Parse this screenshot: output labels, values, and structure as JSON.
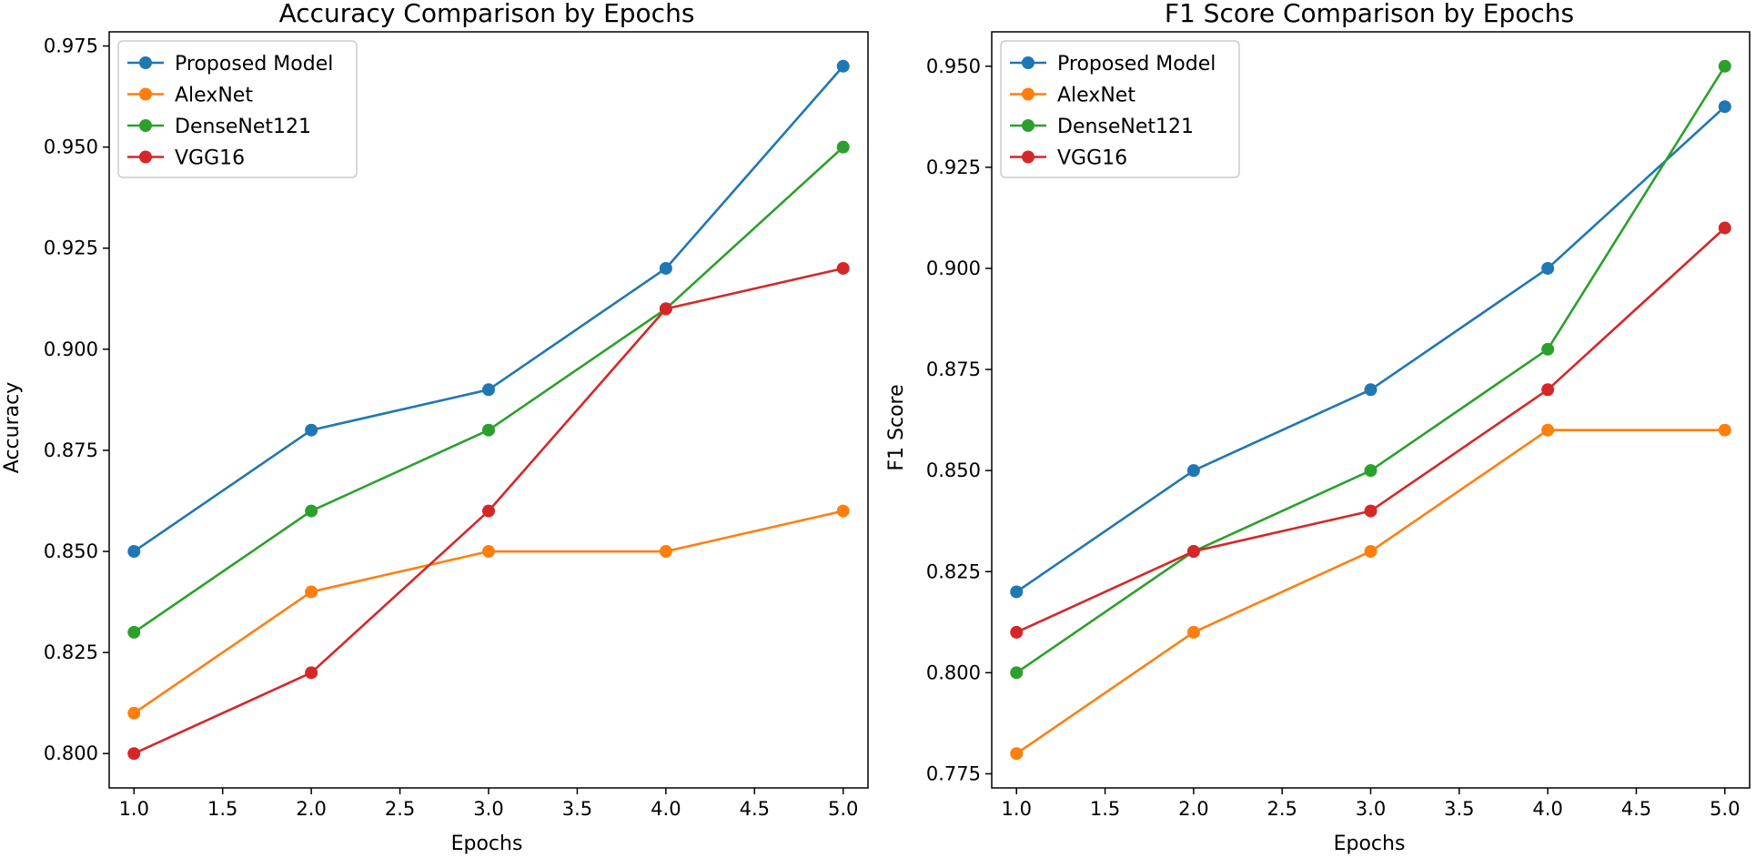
{
  "chart_data": [
    {
      "type": "line",
      "title": "Accuracy Comparison by Epochs",
      "xlabel": "Epochs",
      "ylabel": "Accuracy",
      "x": [
        1.0,
        2.0,
        3.0,
        4.0,
        5.0
      ],
      "xlim": [
        0.86,
        5.14
      ],
      "ylim": [
        0.7915,
        0.9785
      ],
      "xticks": [
        1.0,
        1.5,
        2.0,
        2.5,
        3.0,
        3.5,
        4.0,
        4.5,
        5.0
      ],
      "xtick_labels": [
        "1.0",
        "1.5",
        "2.0",
        "2.5",
        "3.0",
        "3.5",
        "4.0",
        "4.5",
        "5.0"
      ],
      "yticks": [
        0.8,
        0.825,
        0.85,
        0.875,
        0.9,
        0.925,
        0.95,
        0.975
      ],
      "ytick_labels": [
        "0.800",
        "0.825",
        "0.850",
        "0.875",
        "0.900",
        "0.925",
        "0.950",
        "0.975"
      ],
      "grid": false,
      "legend_position": "top-left",
      "series": [
        {
          "name": "Proposed Model",
          "color": "#1f77b4",
          "values": [
            0.85,
            0.88,
            0.89,
            0.92,
            0.97
          ]
        },
        {
          "name": "AlexNet",
          "color": "#ff7f0e",
          "values": [
            0.81,
            0.84,
            0.85,
            0.85,
            0.86
          ]
        },
        {
          "name": "DenseNet121",
          "color": "#2ca02c",
          "values": [
            0.83,
            0.86,
            0.88,
            0.91,
            0.95
          ]
        },
        {
          "name": "VGG16",
          "color": "#d62728",
          "values": [
            0.8,
            0.82,
            0.86,
            0.91,
            0.92
          ]
        }
      ]
    },
    {
      "type": "line",
      "title": "F1 Score Comparison by Epochs",
      "xlabel": "Epochs",
      "ylabel": "F1 Score",
      "x": [
        1.0,
        2.0,
        3.0,
        4.0,
        5.0
      ],
      "xlim": [
        0.86,
        5.14
      ],
      "ylim": [
        0.7715,
        0.9585
      ],
      "xticks": [
        1.0,
        1.5,
        2.0,
        2.5,
        3.0,
        3.5,
        4.0,
        4.5,
        5.0
      ],
      "xtick_labels": [
        "1.0",
        "1.5",
        "2.0",
        "2.5",
        "3.0",
        "3.5",
        "4.0",
        "4.5",
        "5.0"
      ],
      "yticks": [
        0.775,
        0.8,
        0.825,
        0.85,
        0.875,
        0.9,
        0.925,
        0.95
      ],
      "ytick_labels": [
        "0.775",
        "0.800",
        "0.825",
        "0.850",
        "0.875",
        "0.900",
        "0.925",
        "0.950"
      ],
      "grid": false,
      "legend_position": "top-left",
      "series": [
        {
          "name": "Proposed Model",
          "color": "#1f77b4",
          "values": [
            0.82,
            0.85,
            0.87,
            0.9,
            0.94
          ]
        },
        {
          "name": "AlexNet",
          "color": "#ff7f0e",
          "values": [
            0.78,
            0.81,
            0.83,
            0.86,
            0.86
          ]
        },
        {
          "name": "DenseNet121",
          "color": "#2ca02c",
          "values": [
            0.8,
            0.83,
            0.85,
            0.88,
            0.95
          ]
        },
        {
          "name": "VGG16",
          "color": "#d62728",
          "values": [
            0.81,
            0.83,
            0.84,
            0.87,
            0.91
          ]
        }
      ]
    }
  ]
}
